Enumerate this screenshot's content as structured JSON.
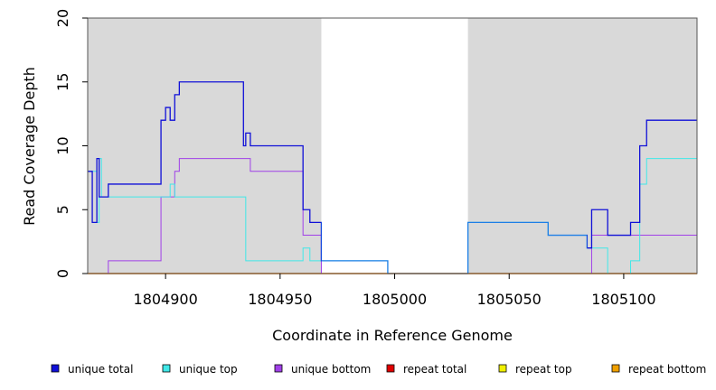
{
  "chart_data": {
    "type": "line",
    "title": "",
    "xlabel": "Coordinate in Reference Genome",
    "ylabel": "Read Coverage Depth",
    "xlim": [
      1804866,
      1805132
    ],
    "ylim": [
      0,
      20
    ],
    "x_ticks": [
      1804900,
      1804950,
      1805000,
      1805050,
      1805100
    ],
    "y_ticks": [
      0,
      5,
      10,
      15,
      20
    ],
    "shaded_regions": [
      [
        1804866,
        1804968
      ],
      [
        1805032,
        1805132
      ]
    ],
    "colors": {
      "shade": "#d9d9d9",
      "unique_total": "#1010d8",
      "unique_total_alt": "#1e7ee6",
      "unique_top": "#40e8e8",
      "unique_bottom": "#a040e8",
      "repeat_total": "#e00000",
      "repeat_top": "#f0f000",
      "repeat_bottom": "#f0a000"
    },
    "series": [
      {
        "name": "unique total",
        "color_key": "unique_total",
        "x": [
          1804866,
          1804868,
          1804870,
          1804871,
          1804872,
          1804874,
          1804875,
          1804898,
          1804900,
          1804902,
          1804904,
          1804906,
          1804907,
          1804934,
          1804935,
          1804937,
          1804960,
          1804963,
          1804968,
          1804997,
          1805032,
          1805067,
          1805084,
          1805086,
          1805093,
          1805103,
          1805107,
          1805110,
          1805132
        ],
        "y": [
          8,
          4,
          9,
          6,
          6,
          6,
          7,
          12,
          13,
          12,
          14,
          15,
          15,
          10,
          11,
          10,
          5,
          4,
          1,
          0,
          4,
          3,
          2,
          5,
          3,
          4,
          10,
          12,
          12
        ]
      },
      {
        "name": "unique top",
        "color_key": "unique_top",
        "x": [
          1804866,
          1804870,
          1804871,
          1804872,
          1804875,
          1804900,
          1804902,
          1804904,
          1804934,
          1804935,
          1804960,
          1804963,
          1804968,
          1804997,
          1805032,
          1805067,
          1805084,
          1805086,
          1805093,
          1805103,
          1805107,
          1805110,
          1805132
        ],
        "y": [
          8,
          4,
          9,
          6,
          6,
          6,
          7,
          6,
          6,
          1,
          2,
          1,
          1,
          0,
          4,
          3,
          2,
          2,
          0,
          1,
          7,
          9,
          9
        ]
      },
      {
        "name": "unique bottom",
        "color_key": "unique_bottom",
        "x": [
          1804866,
          1804868,
          1804875,
          1804898,
          1804904,
          1804906,
          1804935,
          1804937,
          1804960,
          1804963,
          1804968,
          1805032,
          1805086,
          1805132
        ],
        "y": [
          0,
          0,
          1,
          6,
          8,
          9,
          9,
          8,
          3,
          3,
          0,
          0,
          3,
          3
        ]
      },
      {
        "name": "repeat total",
        "color_key": "repeat_total",
        "x": [
          1804866,
          1805132
        ],
        "y": [
          0,
          0
        ]
      },
      {
        "name": "repeat top",
        "color_key": "repeat_top",
        "x": [
          1804866,
          1805132
        ],
        "y": [
          0,
          0
        ]
      },
      {
        "name": "repeat bottom",
        "color_key": "repeat_bottom",
        "x": [
          1804866,
          1805132
        ],
        "y": [
          0,
          0
        ]
      }
    ],
    "legend": {
      "placement": "bottom",
      "items": [
        {
          "label": "unique total",
          "color_key": "unique_total"
        },
        {
          "label": "unique top",
          "color_key": "unique_top"
        },
        {
          "label": "unique bottom",
          "color_key": "unique_bottom"
        },
        {
          "label": "repeat total",
          "color_key": "repeat_total"
        },
        {
          "label": "repeat top",
          "color_key": "repeat_top"
        },
        {
          "label": "repeat bottom",
          "color_key": "repeat_bottom"
        }
      ]
    }
  }
}
